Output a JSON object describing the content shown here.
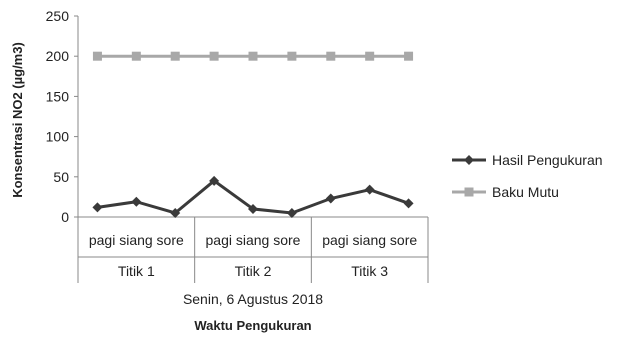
{
  "chart_data": {
    "type": "line",
    "ylabel": "Konsentrasi NO2 (µg/m3)",
    "xlabel": "Waktu Pengukuran",
    "ylim": [
      0,
      250
    ],
    "yticks": [
      0,
      50,
      100,
      150,
      200,
      250
    ],
    "categories": [
      "pagi",
      "siang",
      "sore",
      "pagi",
      "siang",
      "sore",
      "pagi",
      "siang",
      "sore"
    ],
    "groups": [
      {
        "label": "Titik 1",
        "time_labels": "pagi siang sore"
      },
      {
        "label": "Titik 2",
        "time_labels": "pagi siang sore"
      },
      {
        "label": "Titik 3",
        "time_labels": "pagi siang sore"
      }
    ],
    "super_group": "Senin, 6 Agustus 2018",
    "series": [
      {
        "name": "Hasil Pengukuran",
        "values": [
          12,
          19,
          5,
          45,
          10,
          5,
          23,
          34,
          17
        ],
        "color": "#3a3a3a",
        "marker": "diamond"
      },
      {
        "name": "Baku Mutu",
        "values": [
          200,
          200,
          200,
          200,
          200,
          200,
          200,
          200,
          200
        ],
        "color": "#a8a8a8",
        "marker": "square"
      }
    ],
    "grid": false,
    "legend": "right"
  }
}
